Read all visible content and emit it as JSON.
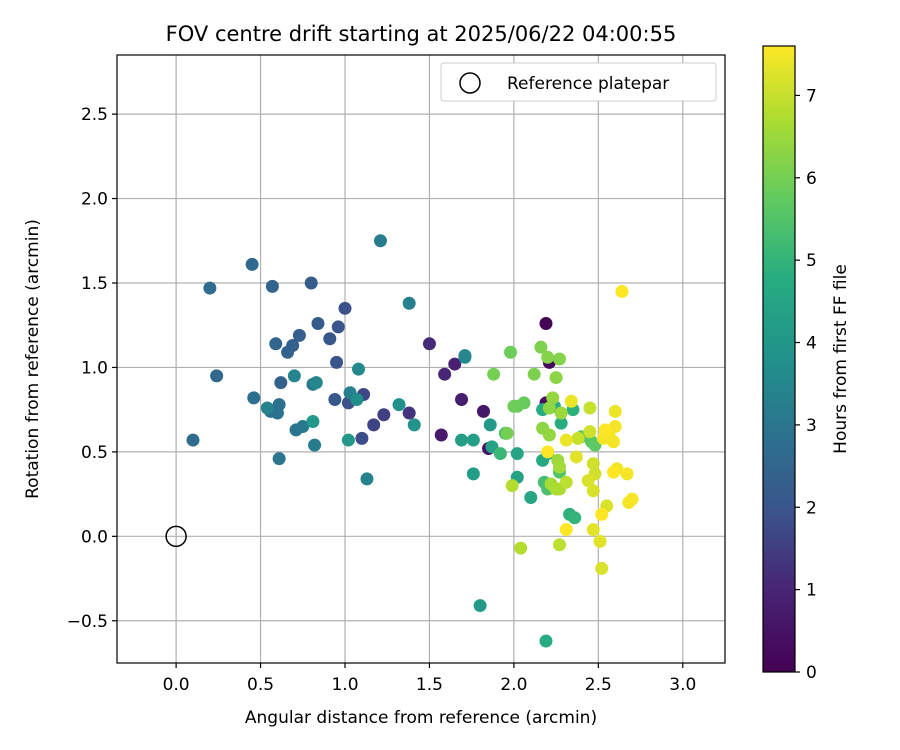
{
  "chart_data": {
    "type": "scatter",
    "title": "FOV centre drift starting at 2025/06/22 04:00:55",
    "xlabel": "Angular distance from reference (arcmin)",
    "ylabel": "Rotation from reference (arcmin)",
    "xlim": [
      -0.35,
      3.25
    ],
    "ylim": [
      -0.75,
      2.85
    ],
    "xticks": [
      "0.0",
      "0.5",
      "1.0",
      "1.5",
      "2.0",
      "2.5",
      "3.0"
    ],
    "yticks": [
      "−0.5",
      "0.0",
      "0.5",
      "1.0",
      "1.5",
      "2.0",
      "2.5"
    ],
    "grid": true,
    "legend": {
      "location": "upper right",
      "label": "Reference platepar"
    },
    "reference_point": {
      "x": 0.0,
      "y": 0.0
    },
    "colorbar": {
      "label": "Hours from first FF file",
      "min": 0,
      "max": 7.6,
      "ticks": [
        "0",
        "1",
        "2",
        "3",
        "4",
        "5",
        "6",
        "7"
      ],
      "colormap": "viridis"
    },
    "points": [
      {
        "x": 2.19,
        "y": 1.26,
        "h": 0.1
      },
      {
        "x": 2.21,
        "y": 1.03,
        "h": 0.3
      },
      {
        "x": 2.19,
        "y": 0.79,
        "h": 0.4
      },
      {
        "x": 1.85,
        "y": 0.52,
        "h": 0.5
      },
      {
        "x": 1.82,
        "y": 0.74,
        "h": 0.6
      },
      {
        "x": 1.57,
        "y": 0.6,
        "h": 0.7
      },
      {
        "x": 1.69,
        "y": 0.81,
        "h": 0.8
      },
      {
        "x": 1.65,
        "y": 1.02,
        "h": 0.9
      },
      {
        "x": 1.59,
        "y": 0.96,
        "h": 1.0
      },
      {
        "x": 1.5,
        "y": 1.14,
        "h": 1.1
      },
      {
        "x": 1.38,
        "y": 0.73,
        "h": 1.3
      },
      {
        "x": 1.23,
        "y": 0.72,
        "h": 1.5
      },
      {
        "x": 1.17,
        "y": 0.66,
        "h": 1.6
      },
      {
        "x": 1.11,
        "y": 0.84,
        "h": 1.7
      },
      {
        "x": 1.1,
        "y": 0.58,
        "h": 1.8
      },
      {
        "x": 1.02,
        "y": 0.79,
        "h": 1.9
      },
      {
        "x": 1.0,
        "y": 1.35,
        "h": 1.9
      },
      {
        "x": 0.96,
        "y": 1.24,
        "h": 2.0
      },
      {
        "x": 0.95,
        "y": 1.03,
        "h": 2.0
      },
      {
        "x": 0.94,
        "y": 0.81,
        "h": 2.1
      },
      {
        "x": 0.91,
        "y": 1.17,
        "h": 2.1
      },
      {
        "x": 0.84,
        "y": 1.26,
        "h": 2.2
      },
      {
        "x": 0.8,
        "y": 1.5,
        "h": 2.2
      },
      {
        "x": 0.73,
        "y": 1.19,
        "h": 2.3
      },
      {
        "x": 0.69,
        "y": 1.13,
        "h": 2.3
      },
      {
        "x": 0.66,
        "y": 1.09,
        "h": 2.4
      },
      {
        "x": 0.62,
        "y": 0.91,
        "h": 2.4
      },
      {
        "x": 0.59,
        "y": 1.14,
        "h": 2.5
      },
      {
        "x": 0.57,
        "y": 1.48,
        "h": 2.5
      },
      {
        "x": 0.45,
        "y": 1.61,
        "h": 2.6
      },
      {
        "x": 0.24,
        "y": 0.95,
        "h": 2.6
      },
      {
        "x": 0.2,
        "y": 1.47,
        "h": 2.7
      },
      {
        "x": 0.1,
        "y": 0.57,
        "h": 2.7
      },
      {
        "x": 0.46,
        "y": 0.82,
        "h": 2.8
      },
      {
        "x": 0.56,
        "y": 0.74,
        "h": 2.8
      },
      {
        "x": 0.6,
        "y": 0.73,
        "h": 2.9
      },
      {
        "x": 0.61,
        "y": 0.78,
        "h": 2.9
      },
      {
        "x": 0.61,
        "y": 0.46,
        "h": 3.0
      },
      {
        "x": 0.71,
        "y": 0.63,
        "h": 3.0
      },
      {
        "x": 0.75,
        "y": 0.65,
        "h": 3.1
      },
      {
        "x": 0.81,
        "y": 0.9,
        "h": 3.1
      },
      {
        "x": 0.82,
        "y": 0.54,
        "h": 3.2
      },
      {
        "x": 1.21,
        "y": 1.75,
        "h": 3.2
      },
      {
        "x": 1.38,
        "y": 1.38,
        "h": 3.3
      },
      {
        "x": 1.03,
        "y": 0.85,
        "h": 3.3
      },
      {
        "x": 1.13,
        "y": 0.34,
        "h": 3.4
      },
      {
        "x": 0.54,
        "y": 0.76,
        "h": 3.4
      },
      {
        "x": 0.7,
        "y": 0.95,
        "h": 3.5
      },
      {
        "x": 0.83,
        "y": 0.91,
        "h": 3.5
      },
      {
        "x": 1.08,
        "y": 0.99,
        "h": 3.6
      },
      {
        "x": 1.07,
        "y": 0.81,
        "h": 3.7
      },
      {
        "x": 1.32,
        "y": 0.78,
        "h": 3.8
      },
      {
        "x": 1.41,
        "y": 0.66,
        "h": 3.9
      },
      {
        "x": 0.81,
        "y": 0.68,
        "h": 4.0
      },
      {
        "x": 1.02,
        "y": 0.57,
        "h": 4.0
      },
      {
        "x": 1.71,
        "y": 1.06,
        "h": 3.6
      },
      {
        "x": 1.71,
        "y": 1.07,
        "h": 3.5
      },
      {
        "x": 1.86,
        "y": 0.66,
        "h": 4.1
      },
      {
        "x": 1.8,
        "y": -0.41,
        "h": 4.1
      },
      {
        "x": 1.76,
        "y": 0.37,
        "h": 4.2
      },
      {
        "x": 1.69,
        "y": 0.57,
        "h": 4.3
      },
      {
        "x": 1.76,
        "y": 0.57,
        "h": 4.3
      },
      {
        "x": 1.87,
        "y": 0.53,
        "h": 4.4
      },
      {
        "x": 2.02,
        "y": 0.35,
        "h": 4.4
      },
      {
        "x": 2.02,
        "y": 0.49,
        "h": 4.5
      },
      {
        "x": 2.1,
        "y": 0.23,
        "h": 4.5
      },
      {
        "x": 2.2,
        "y": 0.49,
        "h": 4.6
      },
      {
        "x": 2.17,
        "y": 0.45,
        "h": 4.6
      },
      {
        "x": 2.19,
        "y": -0.62,
        "h": 4.7
      },
      {
        "x": 2.17,
        "y": 0.75,
        "h": 4.7
      },
      {
        "x": 2.24,
        "y": 0.77,
        "h": 4.8
      },
      {
        "x": 2.28,
        "y": 0.67,
        "h": 4.8
      },
      {
        "x": 2.35,
        "y": 0.75,
        "h": 4.9
      },
      {
        "x": 2.33,
        "y": 0.13,
        "h": 4.9
      },
      {
        "x": 2.36,
        "y": 0.11,
        "h": 5.0
      },
      {
        "x": 1.92,
        "y": 0.49,
        "h": 5.1
      },
      {
        "x": 1.95,
        "y": 0.61,
        "h": 5.2
      },
      {
        "x": 2.18,
        "y": 0.32,
        "h": 5.3
      },
      {
        "x": 2.2,
        "y": 0.28,
        "h": 5.4
      },
      {
        "x": 2.27,
        "y": 0.38,
        "h": 5.5
      },
      {
        "x": 2.4,
        "y": 0.59,
        "h": 5.6
      },
      {
        "x": 2.46,
        "y": 0.56,
        "h": 5.6
      },
      {
        "x": 2.48,
        "y": 0.54,
        "h": 5.7
      },
      {
        "x": 2.02,
        "y": 0.77,
        "h": 5.8
      },
      {
        "x": 2.06,
        "y": 0.79,
        "h": 5.8
      },
      {
        "x": 2.0,
        "y": 0.77,
        "h": 5.9
      },
      {
        "x": 1.98,
        "y": 1.09,
        "h": 5.9
      },
      {
        "x": 1.88,
        "y": 0.96,
        "h": 6.0
      },
      {
        "x": 1.96,
        "y": 0.61,
        "h": 6.0
      },
      {
        "x": 2.12,
        "y": 0.96,
        "h": 6.1
      },
      {
        "x": 2.16,
        "y": 1.12,
        "h": 6.1
      },
      {
        "x": 2.2,
        "y": 1.06,
        "h": 6.2
      },
      {
        "x": 2.27,
        "y": 1.05,
        "h": 6.2
      },
      {
        "x": 2.25,
        "y": 0.94,
        "h": 6.3
      },
      {
        "x": 2.21,
        "y": 0.76,
        "h": 6.3
      },
      {
        "x": 2.17,
        "y": 0.64,
        "h": 6.3
      },
      {
        "x": 2.21,
        "y": 0.6,
        "h": 6.4
      },
      {
        "x": 2.23,
        "y": 0.82,
        "h": 6.4
      },
      {
        "x": 2.28,
        "y": 0.73,
        "h": 6.5
      },
      {
        "x": 2.26,
        "y": 0.45,
        "h": 6.5
      },
      {
        "x": 2.27,
        "y": 0.41,
        "h": 6.6
      },
      {
        "x": 2.22,
        "y": 0.31,
        "h": 6.6
      },
      {
        "x": 2.27,
        "y": 0.28,
        "h": 6.7
      },
      {
        "x": 2.25,
        "y": 0.28,
        "h": 6.7
      },
      {
        "x": 1.99,
        "y": 0.3,
        "h": 6.8
      },
      {
        "x": 2.04,
        "y": -0.07,
        "h": 6.8
      },
      {
        "x": 2.27,
        "y": -0.05,
        "h": 6.9
      },
      {
        "x": 2.31,
        "y": 0.32,
        "h": 6.9
      },
      {
        "x": 2.38,
        "y": 0.58,
        "h": 7.0
      },
      {
        "x": 2.45,
        "y": 0.76,
        "h": 7.0
      },
      {
        "x": 2.45,
        "y": 0.62,
        "h": 7.1
      },
      {
        "x": 2.47,
        "y": 0.43,
        "h": 7.1
      },
      {
        "x": 2.48,
        "y": 0.37,
        "h": 7.1
      },
      {
        "x": 2.44,
        "y": 0.33,
        "h": 7.2
      },
      {
        "x": 2.47,
        "y": 0.27,
        "h": 7.2
      },
      {
        "x": 2.55,
        "y": 0.18,
        "h": 7.2
      },
      {
        "x": 2.52,
        "y": -0.19,
        "h": 7.2
      },
      {
        "x": 2.51,
        "y": -0.03,
        "h": 7.3
      },
      {
        "x": 2.47,
        "y": 0.04,
        "h": 7.3
      },
      {
        "x": 2.37,
        "y": 0.47,
        "h": 7.3
      },
      {
        "x": 2.31,
        "y": 0.57,
        "h": 7.4
      },
      {
        "x": 2.34,
        "y": 0.8,
        "h": 7.4
      },
      {
        "x": 2.6,
        "y": 0.74,
        "h": 7.4
      },
      {
        "x": 2.6,
        "y": 0.65,
        "h": 7.5
      },
      {
        "x": 2.56,
        "y": 0.61,
        "h": 7.5
      },
      {
        "x": 2.57,
        "y": 0.58,
        "h": 7.5
      },
      {
        "x": 2.59,
        "y": 0.56,
        "h": 7.5
      },
      {
        "x": 2.53,
        "y": 0.58,
        "h": 7.5
      },
      {
        "x": 2.54,
        "y": 0.63,
        "h": 7.6
      },
      {
        "x": 2.61,
        "y": 0.4,
        "h": 7.5
      },
      {
        "x": 2.59,
        "y": 0.38,
        "h": 7.6
      },
      {
        "x": 2.67,
        "y": 0.37,
        "h": 7.5
      },
      {
        "x": 2.52,
        "y": 0.13,
        "h": 7.6
      },
      {
        "x": 2.7,
        "y": 0.22,
        "h": 7.5
      },
      {
        "x": 2.68,
        "y": 0.2,
        "h": 7.5
      },
      {
        "x": 2.31,
        "y": 0.04,
        "h": 7.6
      },
      {
        "x": 2.64,
        "y": 1.45,
        "h": 7.6
      },
      {
        "x": 2.2,
        "y": 0.5,
        "h": 7.6
      }
    ]
  }
}
